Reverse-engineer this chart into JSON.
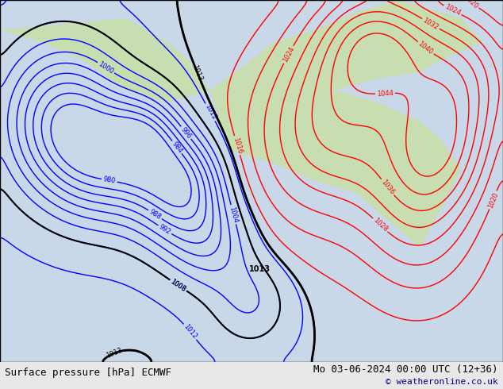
{
  "title_left": "Surface pressure [hPa] ECMWF",
  "title_right": "Mo 03-06-2024 00:00 UTC (12+36)",
  "copyright": "© weatheronline.co.uk",
  "bg_color": "#e8e8e8",
  "map_bg": "#d0e8d0",
  "border_color": "#000000",
  "bottom_bar_color": "#ffffff",
  "bottom_text_color": "#000000",
  "fig_width": 6.34,
  "fig_height": 4.9,
  "dpi": 100
}
